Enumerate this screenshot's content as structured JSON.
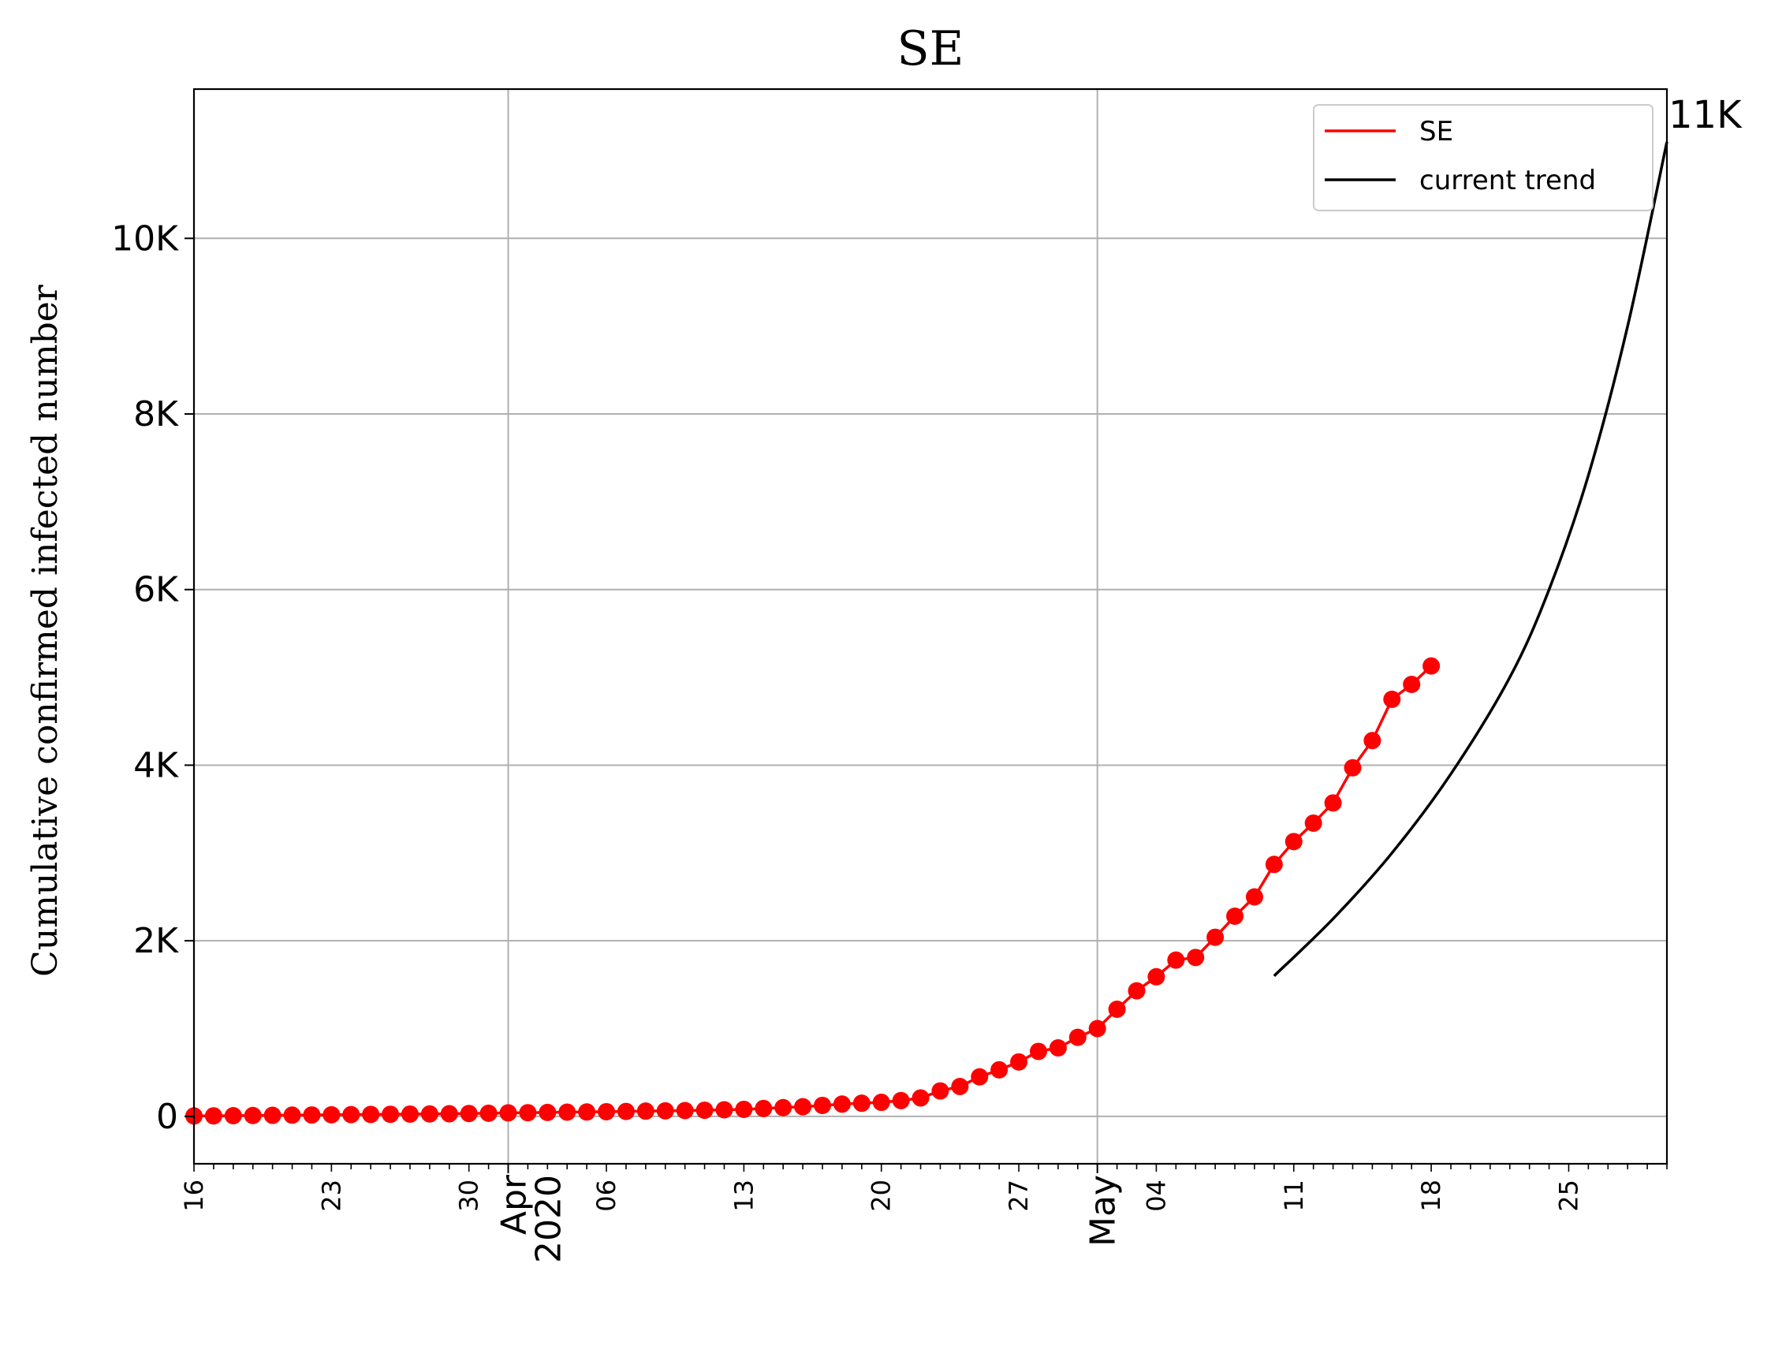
{
  "chart_data": {
    "type": "line",
    "title": "SE",
    "ylabel": "Cumulative confirmed infected number",
    "xlabel": "",
    "x_start": "2020-03-16",
    "x_end": "2020-05-30",
    "ylim": [
      -540,
      11700
    ],
    "yticks": [
      {
        "value": 0,
        "label": "0"
      },
      {
        "value": 2000,
        "label": "2K"
      },
      {
        "value": 4000,
        "label": "4K"
      },
      {
        "value": 6000,
        "label": "6K"
      },
      {
        "value": 8000,
        "label": "8K"
      },
      {
        "value": 10000,
        "label": "10K"
      }
    ],
    "xticks_minor_labels": [
      {
        "date": "2020-03-16",
        "label": "16"
      },
      {
        "date": "2020-03-23",
        "label": "23"
      },
      {
        "date": "2020-03-30",
        "label": "30"
      },
      {
        "date": "2020-04-06",
        "label": "06"
      },
      {
        "date": "2020-04-13",
        "label": "13"
      },
      {
        "date": "2020-04-20",
        "label": "20"
      },
      {
        "date": "2020-04-27",
        "label": "27"
      },
      {
        "date": "2020-05-04",
        "label": "04"
      },
      {
        "date": "2020-05-11",
        "label": "11"
      },
      {
        "date": "2020-05-18",
        "label": "18"
      },
      {
        "date": "2020-05-25",
        "label": "25"
      }
    ],
    "xticks_major": [
      {
        "date": "2020-04-01",
        "label": "Apr\n2020"
      },
      {
        "date": "2020-05-01",
        "label": "May"
      }
    ],
    "grid": true,
    "legend": {
      "position": "top-right",
      "entries": [
        {
          "name": "SE",
          "color": "#ff0000"
        },
        {
          "name": "current trend",
          "color": "#000000"
        }
      ]
    },
    "end_annotation": "11K",
    "series": [
      {
        "name": "SE",
        "color": "#ff0000",
        "marker": "circle",
        "start_date": "2020-03-16",
        "values": [
          5,
          6,
          8,
          10,
          12,
          14,
          16,
          18,
          20,
          22,
          24,
          26,
          28,
          30,
          33,
          36,
          40,
          42,
          45,
          48,
          50,
          53,
          56,
          60,
          63,
          66,
          70,
          75,
          80,
          90,
          100,
          110,
          125,
          140,
          150,
          160,
          180,
          210,
          290,
          340,
          450,
          530,
          620,
          740,
          780,
          900,
          1000,
          1220,
          1430,
          1590,
          1780,
          1810,
          2040,
          2280,
          2500,
          2870,
          3130,
          3340,
          3570,
          3970,
          4280,
          4750,
          4920,
          5130
        ]
      },
      {
        "name": "current trend",
        "color": "#000000",
        "x": [
          "2020-05-10",
          "2020-05-13",
          "2020-05-16",
          "2020-05-19",
          "2020-05-22",
          "2020-05-24",
          "2020-05-26",
          "2020-05-28",
          "2020-05-30"
        ],
        "values": [
          1600,
          2250,
          3000,
          3900,
          5000,
          6000,
          7300,
          9000,
          11100
        ]
      }
    ]
  }
}
